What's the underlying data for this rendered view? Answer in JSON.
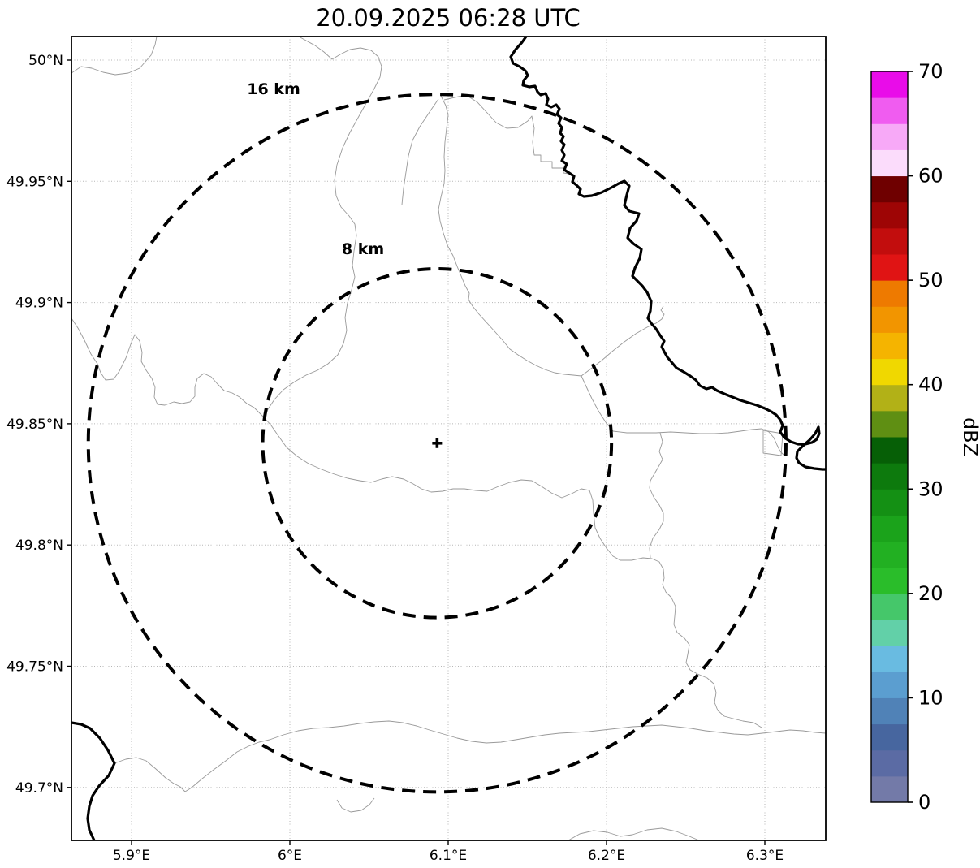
{
  "title": "20.09.2025 06:28 UTC",
  "plot": {
    "extent": {
      "lon_min": 5.862,
      "lon_max": 6.338,
      "lat_min": 49.678,
      "lat_max": 50.009
    },
    "x_axis": {
      "ticks": [
        {
          "lon": 5.9,
          "label": "5.9°E"
        },
        {
          "lon": 6.0,
          "label": "6°E"
        },
        {
          "lon": 6.1,
          "label": "6.1°E"
        },
        {
          "lon": 6.2,
          "label": "6.2°E"
        },
        {
          "lon": 6.3,
          "label": "6.3°E"
        }
      ]
    },
    "y_axis": {
      "ticks": [
        {
          "lat": 50.0,
          "label": "50°N"
        },
        {
          "lat": 49.95,
          "label": "49.95°N"
        },
        {
          "lat": 49.9,
          "label": "49.9°N"
        },
        {
          "lat": 49.85,
          "label": "49.85°N"
        },
        {
          "lat": 49.8,
          "label": "49.8°N"
        },
        {
          "lat": 49.75,
          "label": "49.75°N"
        },
        {
          "lat": 49.7,
          "label": "49.7°N"
        }
      ]
    },
    "range_rings": [
      {
        "radius_km": 16,
        "label": "16 km"
      },
      {
        "radius_km": 8,
        "label": "8 km"
      }
    ],
    "radar_center": {
      "lon": 6.093,
      "lat": 49.842,
      "marker": "+"
    },
    "grid": "dotted"
  },
  "colorbar": {
    "label": "dBZ",
    "min": 0,
    "max": 70,
    "tick_values": [
      0,
      10,
      20,
      30,
      40,
      50,
      60,
      70
    ],
    "band_step_dbz": 2.5,
    "band_colors_low_to_high": [
      "#737aa8",
      "#5b6ba4",
      "#47669f",
      "#5082b7",
      "#5b9ed0",
      "#69bbe1",
      "#62d0a8",
      "#45c76a",
      "#2abd2a",
      "#22b022",
      "#1ba31b",
      "#149014",
      "#0d7a0d",
      "#065f06",
      "#5f8f13",
      "#b2b117",
      "#f0d800",
      "#f5b400",
      "#f29500",
      "#ee7a00",
      "#e01414",
      "#c20d0d",
      "#9e0505",
      "#6f0000",
      "#fbdcfb",
      "#f7a9f7",
      "#f05cf0",
      "#e90ce9"
    ]
  },
  "colors": {
    "background": "#ffffff",
    "country_border": "#000000",
    "admin_border": "#999999",
    "grid_line": "#b5b5b5",
    "range_ring": "#000000"
  }
}
